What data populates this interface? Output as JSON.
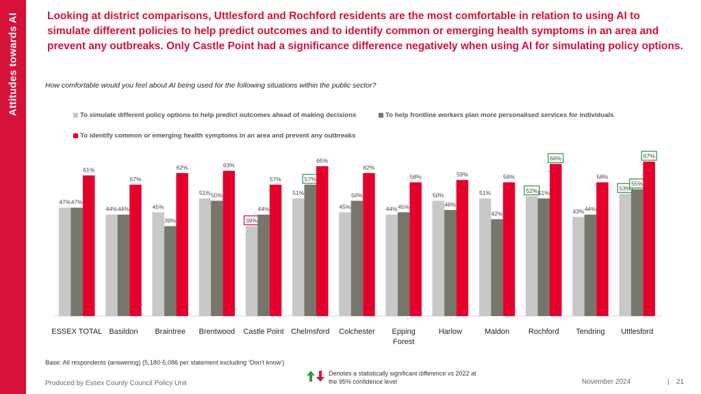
{
  "sidebar": {
    "title": "Attitudes towards AI"
  },
  "headline": "Looking at district comparisons, Uttlesford and Rochford residents are the most comfortable in relation to using AI to simulate different policies to help predict outcomes and to identify common or emerging health symptoms in an area and prevent any outbreaks. Only Castle Point had a significance difference negatively when using AI for simulating policy options.",
  "question": "How comfortable would you feel about AI being used for the following situations within the public sector?",
  "colors": {
    "accent": "#d6113a",
    "series1": "#c8c8c8",
    "series2": "#76766a",
    "series3": "#e4002b",
    "sig_up": "#2e9e40",
    "sig_down": "#d6113a"
  },
  "chart_data": {
    "type": "bar",
    "title": "",
    "xlabel": "",
    "ylabel": "",
    "ylim": [
      0,
      100
    ],
    "value_suffix": "%",
    "categories": [
      "ESSEX TOTAL",
      "Basildon",
      "Braintree",
      "Brentwood",
      "Castle Point",
      "Chelmsford",
      "Colchester",
      "Epping Forest",
      "Harlow",
      "Maldon",
      "Rochford",
      "Tendring",
      "Uttlesford"
    ],
    "series": [
      {
        "name": "To simulate different policy options to help predict outcomes ahead of making decisions",
        "values": [
          47,
          44,
          45,
          51,
          39,
          51,
          45,
          44,
          50,
          51,
          52,
          43,
          53
        ]
      },
      {
        "name": "To help frontline workers plan more personalised services for individuals",
        "values": [
          47,
          44,
          39,
          50,
          44,
          57,
          50,
          45,
          46,
          42,
          51,
          44,
          55
        ]
      },
      {
        "name": "To identify common or emerging health symptoms in an area and prevent any outbreaks",
        "values": [
          61,
          57,
          62,
          63,
          57,
          65,
          62,
          58,
          59,
          58,
          66,
          58,
          67
        ]
      }
    ],
    "significance": [
      {
        "category": "Castle Point",
        "series": 0,
        "direction": "lower"
      },
      {
        "category": "Chelmsford",
        "series": 1,
        "direction": "higher"
      },
      {
        "category": "Rochford",
        "series": 0,
        "direction": "higher"
      },
      {
        "category": "Rochford",
        "series": 2,
        "direction": "higher"
      },
      {
        "category": "Uttlesford",
        "series": 0,
        "direction": "higher"
      },
      {
        "category": "Uttlesford",
        "series": 1,
        "direction": "higher"
      },
      {
        "category": "Uttlesford",
        "series": 2,
        "direction": "higher"
      }
    ]
  },
  "footer": {
    "base": "Base: All respondents (answering) (5,180-5,086 per statement excluding ‘Don’t know’)",
    "sig_note": "Denotes a statistically significant difference vs 2022 at the 95% confidence level",
    "produced": "Produced by Essex County Council Policy Unit",
    "date": "November 2024",
    "page_sep": "|",
    "page": "21"
  }
}
